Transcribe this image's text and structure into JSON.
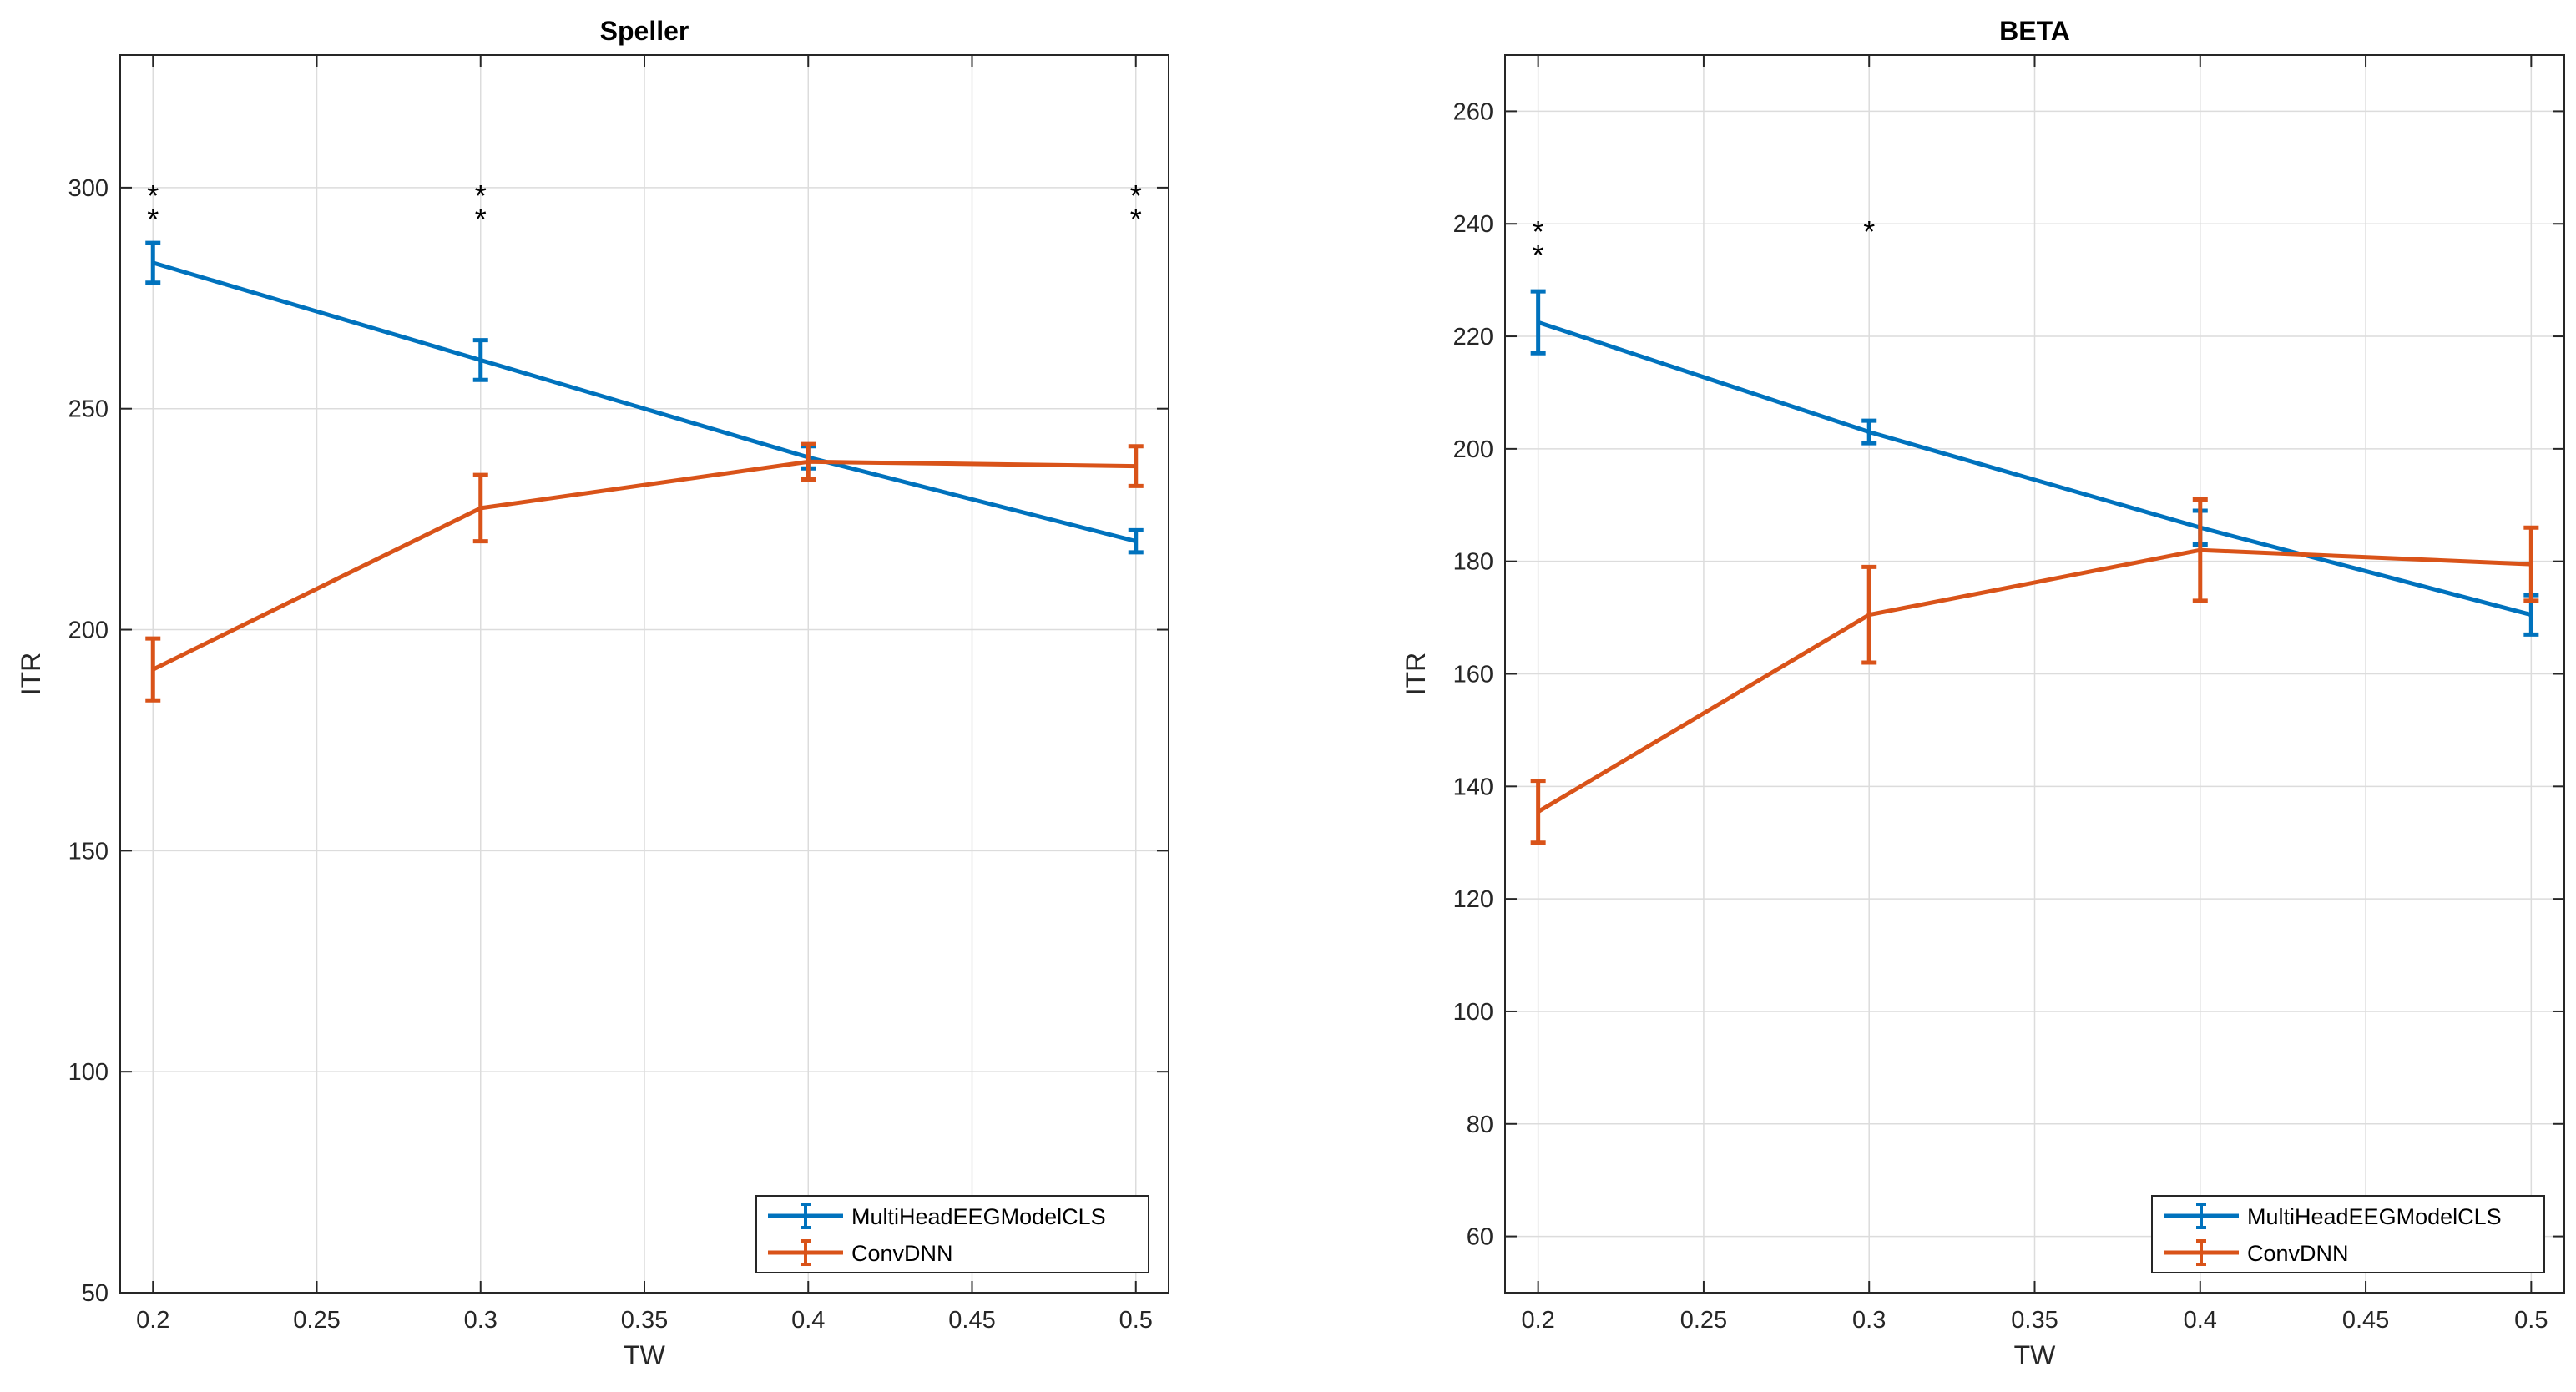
{
  "chart_data": [
    {
      "type": "line",
      "title": "Speller",
      "xlabel": "TW",
      "ylabel": "ITR",
      "xlim": [
        0.19,
        0.51
      ],
      "ylim": [
        50,
        330
      ],
      "xticks": [
        0.2,
        0.25,
        0.3,
        0.35,
        0.4,
        0.45,
        0.5
      ],
      "xtick_labels": [
        "0.2",
        "0.25",
        "0.3",
        "0.35",
        "0.4",
        "0.45",
        "0.5"
      ],
      "yticks": [
        50,
        100,
        150,
        200,
        250,
        300
      ],
      "ytick_labels": [
        "50",
        "100",
        "150",
        "200",
        "250",
        "300"
      ],
      "grid": true,
      "legend_position": "bottom-right",
      "x": [
        0.2,
        0.3,
        0.4,
        0.5
      ],
      "series": [
        {
          "name": "MultiHeadEEGModelCLS",
          "color": "#0072BD",
          "values": [
            283,
            261,
            239,
            220
          ],
          "errors": [
            4.5,
            4.5,
            2.5,
            2.5
          ]
        },
        {
          "name": "ConvDNN",
          "color": "#D95319",
          "values": [
            191,
            227.5,
            238,
            237
          ],
          "errors": [
            7,
            7.5,
            4,
            4.5
          ]
        }
      ],
      "significance": [
        {
          "x": 0.2,
          "marks": [
            "*",
            "*"
          ]
        },
        {
          "x": 0.3,
          "marks": [
            "*",
            "*"
          ]
        },
        {
          "x": 0.5,
          "marks": [
            "*",
            "*"
          ]
        }
      ]
    },
    {
      "type": "line",
      "title": "BETA",
      "xlabel": "TW",
      "ylabel": "ITR",
      "xlim": [
        0.19,
        0.51
      ],
      "ylim": [
        50,
        270
      ],
      "xticks": [
        0.2,
        0.25,
        0.3,
        0.35,
        0.4,
        0.45,
        0.5
      ],
      "xtick_labels": [
        "0.2",
        "0.25",
        "0.3",
        "0.35",
        "0.4",
        "0.45",
        "0.5"
      ],
      "yticks": [
        60,
        80,
        100,
        120,
        140,
        160,
        180,
        200,
        220,
        240,
        260
      ],
      "ytick_labels": [
        "60",
        "80",
        "100",
        "120",
        "140",
        "160",
        "180",
        "200",
        "220",
        "240",
        "260"
      ],
      "grid": true,
      "legend_position": "bottom-right",
      "x": [
        0.2,
        0.3,
        0.4,
        0.5
      ],
      "series": [
        {
          "name": "MultiHeadEEGModelCLS",
          "color": "#0072BD",
          "values": [
            222.5,
            203,
            186,
            170.5
          ],
          "errors": [
            5.5,
            2,
            3,
            3.5
          ]
        },
        {
          "name": "ConvDNN",
          "color": "#D95319",
          "values": [
            135.5,
            170.5,
            182,
            179.5
          ],
          "errors": [
            5.5,
            8.5,
            9,
            6.5
          ]
        }
      ],
      "significance": [
        {
          "x": 0.2,
          "marks": [
            "*",
            "*"
          ]
        },
        {
          "x": 0.3,
          "marks": [
            "*"
          ]
        }
      ]
    }
  ]
}
